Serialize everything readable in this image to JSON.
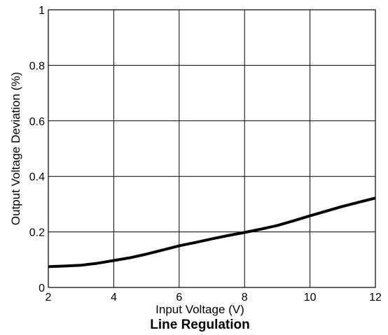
{
  "chart_data": {
    "type": "line",
    "title": "Line Regulation",
    "xlabel": "Input Voltage (V)",
    "ylabel": "Output Voltage Deviation (%)",
    "xlim": [
      2,
      12
    ],
    "ylim": [
      0,
      1
    ],
    "grid": true,
    "x_ticks": [
      "2",
      "4",
      "6",
      "8",
      "10",
      "12"
    ],
    "y_ticks": [
      "0",
      "0.2",
      "0.4",
      "0.6",
      "0.8",
      "1"
    ],
    "series": [
      {
        "x": [
          2,
          2.5,
          3,
          3.5,
          4,
          4.5,
          5,
          5.5,
          6,
          6.5,
          7,
          7.5,
          8,
          8.5,
          9,
          9.5,
          10,
          10.5,
          11,
          11.5,
          12
        ],
        "values": [
          0.075,
          0.077,
          0.08,
          0.087,
          0.097,
          0.107,
          0.12,
          0.135,
          0.15,
          0.162,
          0.175,
          0.187,
          0.198,
          0.21,
          0.223,
          0.24,
          0.258,
          0.275,
          0.292,
          0.307,
          0.322
        ]
      }
    ]
  }
}
